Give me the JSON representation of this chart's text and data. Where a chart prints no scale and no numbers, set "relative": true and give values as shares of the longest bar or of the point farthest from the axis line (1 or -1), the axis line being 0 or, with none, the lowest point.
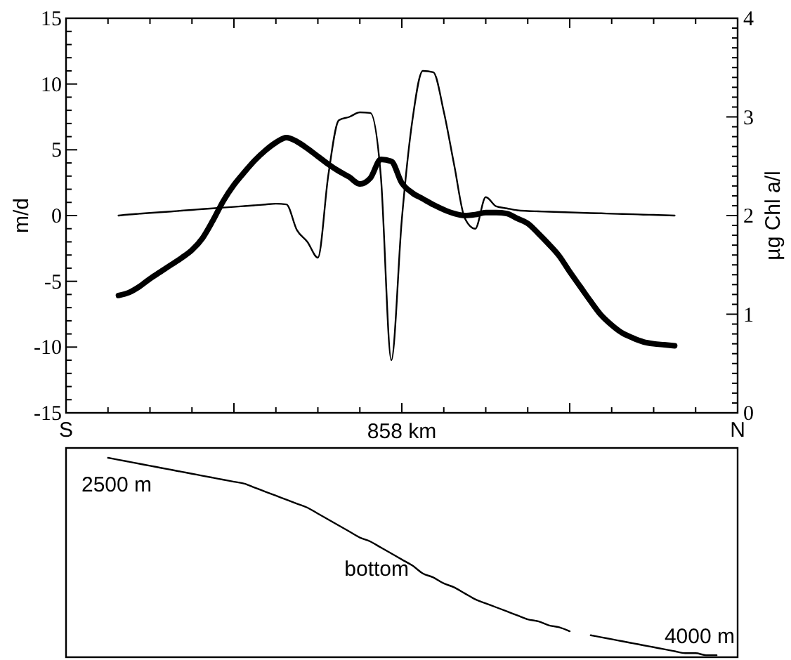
{
  "chart_data": [
    {
      "type": "line",
      "xlabel": "858 km",
      "ylabel": "m/d",
      "y2label": "µg Chl a/l",
      "categories": [
        "S",
        null,
        null,
        null,
        null,
        null,
        null,
        null,
        null,
        null,
        null,
        null,
        null,
        null,
        null,
        null,
        null,
        null,
        null,
        null,
        null,
        null,
        null,
        null,
        null,
        null,
        null,
        null,
        null,
        null,
        null,
        null,
        null,
        null,
        null,
        null,
        null,
        null,
        null,
        null,
        null,
        null,
        null,
        null,
        null,
        null,
        null,
        null,
        null,
        null,
        null,
        null,
        null,
        null,
        null,
        null,
        null,
        null,
        null,
        null,
        null,
        null,
        null,
        null,
        "N"
      ],
      "ylim": [
        -15,
        15
      ],
      "yticks": [
        -15,
        {
          "value": -14,
          "label": null
        },
        {
          "value": -13,
          "label": null
        },
        {
          "value": -12,
          "label": null
        },
        {
          "value": -11,
          "label": null
        },
        -10,
        {
          "value": -9,
          "label": null
        },
        {
          "value": -8,
          "label": null
        },
        {
          "value": -7,
          "label": null
        },
        {
          "value": -6,
          "label": null
        },
        -5,
        {
          "value": -4,
          "label": null
        },
        {
          "value": -3,
          "label": null
        },
        {
          "value": -2,
          "label": null
        },
        {
          "value": -1,
          "label": null
        },
        0,
        {
          "value": 1,
          "label": null
        },
        {
          "value": 2,
          "label": null
        },
        {
          "value": 3,
          "label": null
        },
        {
          "value": 4,
          "label": null
        },
        5,
        {
          "value": 6,
          "label": null
        },
        {
          "value": 7,
          "label": null
        },
        {
          "value": 8,
          "label": null
        },
        {
          "value": 9,
          "label": null
        },
        10,
        {
          "value": 11,
          "label": null
        },
        {
          "value": 12,
          "label": null
        },
        {
          "value": 13,
          "label": null
        },
        {
          "value": 14,
          "label": null
        },
        15
      ],
      "y2lim": [
        0,
        4
      ],
      "y2ticks": [
        0,
        {
          "value": 0.1,
          "label": null
        },
        {
          "value": 0.2,
          "label": null
        },
        {
          "value": 0.3,
          "label": null
        },
        {
          "value": 0.4,
          "label": null
        },
        {
          "value": 0.5,
          "label": null
        },
        {
          "value": 0.6,
          "label": null
        },
        {
          "value": 0.7,
          "label": null
        },
        {
          "value": 0.8,
          "label": null
        },
        {
          "value": 0.9,
          "label": null
        },
        1,
        {
          "value": 1.1,
          "label": null
        },
        {
          "value": 1.2,
          "label": null
        },
        {
          "value": 1.3,
          "label": null
        },
        {
          "value": 1.4,
          "label": null
        },
        {
          "value": 1.5,
          "label": null
        },
        {
          "value": 1.6,
          "label": null
        },
        {
          "value": 1.7,
          "label": null
        },
        {
          "value": 1.8,
          "label": null
        },
        {
          "value": 1.9,
          "label": null
        },
        2,
        {
          "value": 2.1,
          "label": null
        },
        {
          "value": 2.2,
          "label": null
        },
        {
          "value": 2.3,
          "label": null
        },
        {
          "value": 2.4,
          "label": null
        },
        {
          "value": 2.5,
          "label": null
        },
        {
          "value": 2.6,
          "label": null
        },
        {
          "value": 2.7,
          "label": null
        },
        {
          "value": 2.8,
          "label": null
        },
        {
          "value": 2.9,
          "label": null
        },
        3,
        {
          "value": 3.1,
          "label": null
        },
        {
          "value": 3.2,
          "label": null
        },
        {
          "value": 3.3,
          "label": null
        },
        {
          "value": 3.4,
          "label": null
        },
        {
          "value": 3.5,
          "label": null
        },
        {
          "value": 3.6,
          "label": null
        },
        {
          "value": 3.7,
          "label": null
        },
        {
          "value": 3.8,
          "label": null
        },
        {
          "value": 3.9,
          "label": null
        },
        4
      ],
      "series": [
        {
          "color": "#000000",
          "values": [
            null,
            null,
            null,
            null,
            null,
            0,
            0.08,
            0.14,
            0.2,
            0.25,
            0.31,
            0.37,
            0.43,
            0.49,
            0.55,
            0.61,
            0.66,
            0.72,
            0.78,
            0.84,
            0.9,
            0.85,
            -1.1,
            -2,
            -3.2,
            3.1,
            7.25,
            7.5,
            7.85,
            7.8,
            3,
            -11,
            -0.3,
            7.2,
            11,
            10.9,
            7.9,
            3.8,
            -0.2,
            -1,
            1.4,
            0.7,
            0.55,
            0.4,
            0.35,
            0.32,
            0.29,
            0.27,
            0.24,
            0.21,
            0.19,
            0.17,
            0.14,
            0.12,
            0.1,
            0.07,
            0.05,
            0.03,
            0,
            null,
            null,
            null,
            null,
            null,
            null
          ]
        },
        {
          "color": "#000000",
          "axis": "y2",
          "values": [
            null,
            null,
            null,
            null,
            null,
            1.19,
            1.22,
            1.28,
            1.36,
            1.43,
            1.5,
            1.57,
            1.65,
            1.77,
            1.95,
            2.15,
            2.31,
            2.44,
            2.56,
            2.66,
            2.74,
            2.79,
            2.75,
            2.68,
            2.6,
            2.52,
            2.45,
            2.39,
            2.32,
            2.38,
            2.57,
            2.55,
            2.33,
            2.23,
            2.17,
            2.11,
            2.06,
            2.02,
            2,
            2.01,
            2.03,
            2.03,
            2.02,
            1.97,
            1.92,
            1.82,
            1.71,
            1.59,
            1.43,
            1.28,
            1.13,
            0.99,
            0.89,
            0.81,
            0.76,
            0.72,
            0.7,
            0.69,
            0.68,
            null,
            null,
            null,
            null,
            null,
            null
          ]
        }
      ]
    },
    {
      "type": "line",
      "relative": true,
      "categories": [
        null,
        null,
        null,
        null,
        null,
        null,
        null,
        null,
        null,
        null,
        null,
        null,
        null,
        null,
        null,
        null,
        null,
        null,
        null,
        null,
        null,
        null,
        null,
        null,
        null,
        null,
        null,
        null,
        null,
        null,
        null,
        null,
        null,
        null,
        null,
        null,
        null,
        null,
        null,
        null,
        null,
        null,
        null,
        null,
        null,
        null,
        null,
        null,
        null,
        null,
        null,
        null,
        null,
        null,
        null,
        null,
        null,
        null,
        null,
        null,
        null,
        null,
        null,
        null,
        null
      ],
      "series": [
        {
          "color": "#000000",
          "values": [
            null,
            null,
            null,
            null,
            1,
            0.99,
            0.98,
            0.97,
            0.96,
            0.95,
            0.94,
            0.93,
            0.92,
            0.91,
            0.9,
            0.89,
            0.88,
            0.87,
            0.85,
            0.83,
            0.81,
            0.79,
            0.77,
            0.75,
            0.72,
            0.69,
            0.66,
            0.63,
            0.6,
            0.58,
            0.55,
            0.52,
            0.49,
            0.46,
            0.42,
            0.4,
            0.37,
            0.35,
            0.32,
            0.29,
            0.27,
            0.25,
            0.23,
            0.21,
            0.19,
            0.18,
            0.16,
            0.15,
            0.13,
            null,
            0.11,
            0.1,
            0.09,
            0.08,
            0.07,
            0.06,
            0.05,
            0.04,
            0.03,
            0.02,
            0.02,
            0.01,
            0.01,
            null,
            null
          ]
        }
      ],
      "annotations": [
        "2500 m",
        "bottom",
        "4000 m"
      ]
    }
  ]
}
